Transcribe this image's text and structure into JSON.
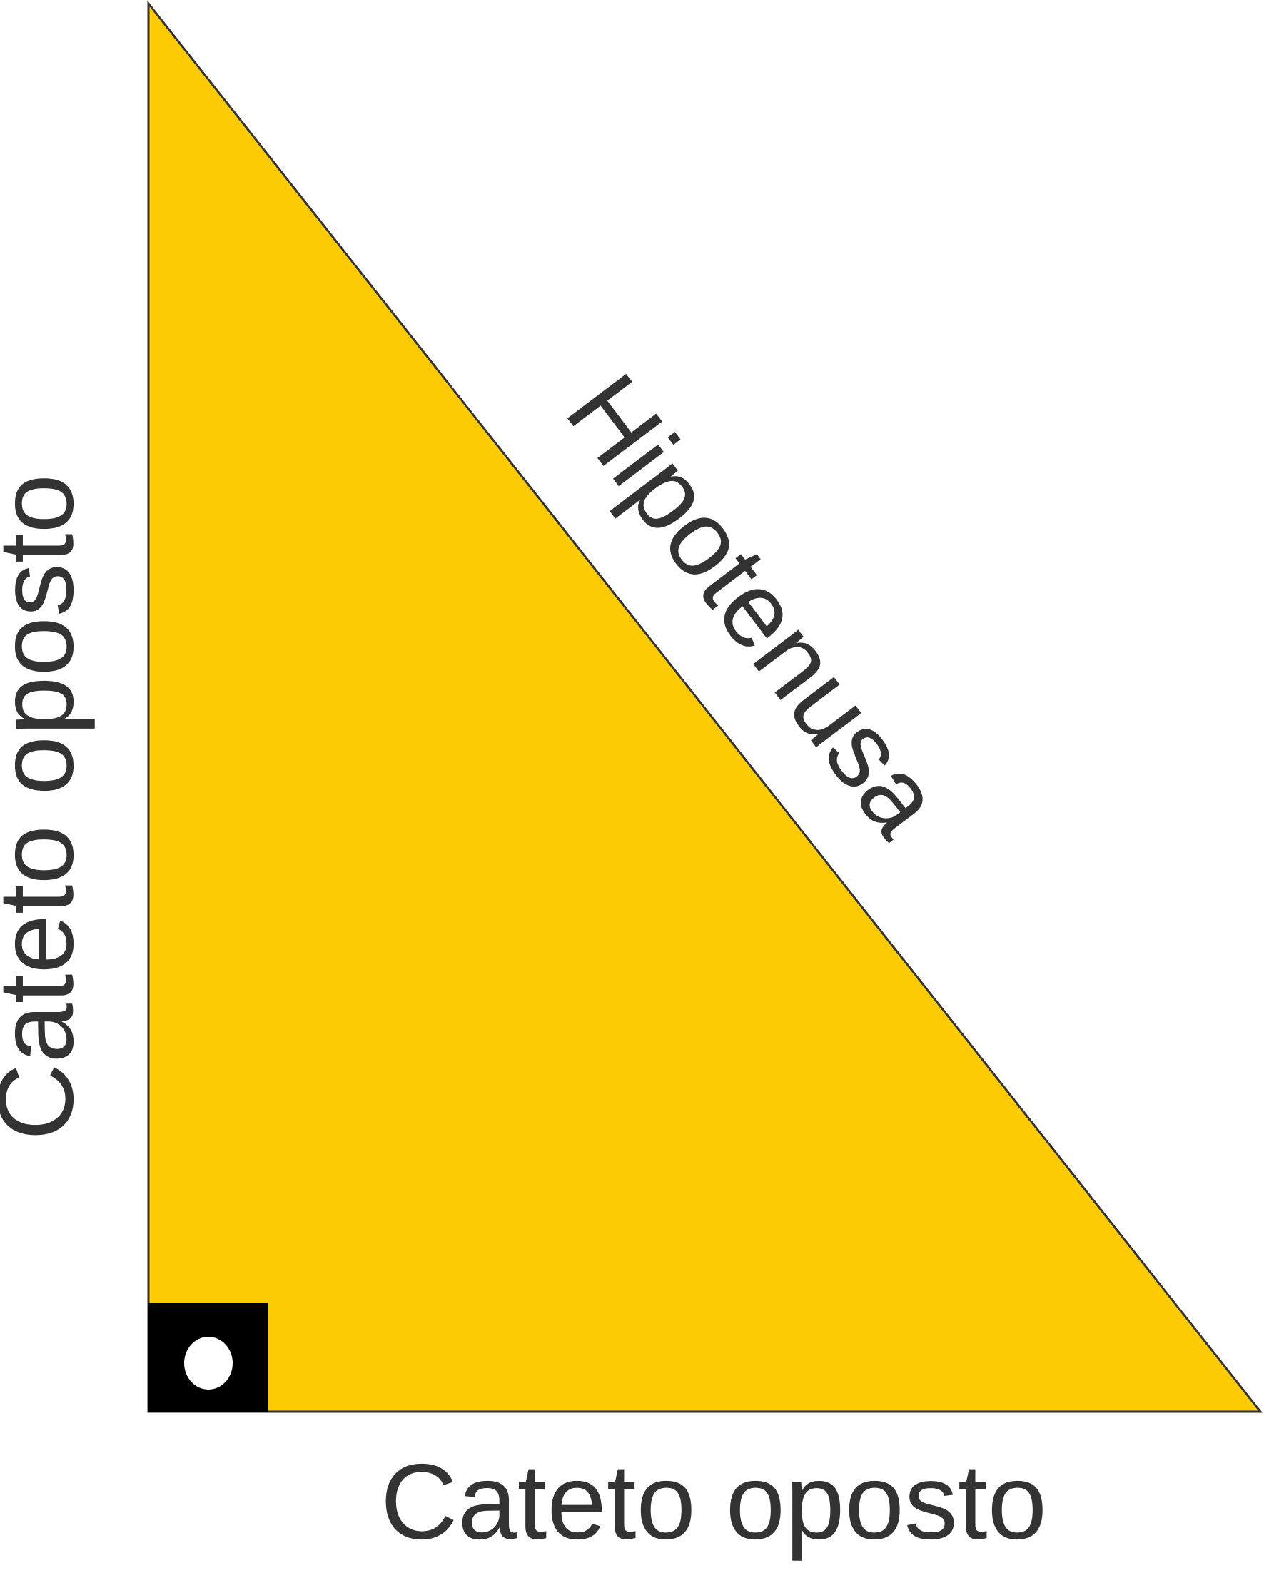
{
  "diagram": {
    "hypotenuse_label": "Hipotenusa",
    "vertical_leg_label": "Cateto oposto",
    "horizontal_leg_label": "Cateto oposto"
  },
  "colors": {
    "triangle_fill": "#FDCB03",
    "triangle_stroke": "#333333",
    "text": "#333333",
    "right_angle_marker": "#000000",
    "right_angle_dot": "#ffffff"
  }
}
